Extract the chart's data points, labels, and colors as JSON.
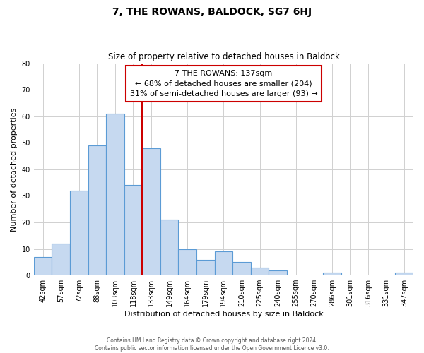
{
  "title": "7, THE ROWANS, BALDOCK, SG7 6HJ",
  "subtitle": "Size of property relative to detached houses in Baldock",
  "xlabel": "Distribution of detached houses by size in Baldock",
  "ylabel": "Number of detached properties",
  "bin_labels": [
    "42sqm",
    "57sqm",
    "72sqm",
    "88sqm",
    "103sqm",
    "118sqm",
    "133sqm",
    "149sqm",
    "164sqm",
    "179sqm",
    "194sqm",
    "210sqm",
    "225sqm",
    "240sqm",
    "255sqm",
    "270sqm",
    "286sqm",
    "301sqm",
    "316sqm",
    "331sqm",
    "347sqm"
  ],
  "bar_heights": [
    7,
    12,
    32,
    49,
    61,
    34,
    48,
    21,
    10,
    6,
    9,
    5,
    3,
    2,
    0,
    0,
    1,
    0,
    0,
    0,
    1
  ],
  "bar_color": "#c6d9f0",
  "bar_edge_color": "#5b9bd5",
  "vline_x_idx": 6,
  "vline_color": "#cc0000",
  "annotation_line1": "7 THE ROWANS: 137sqm",
  "annotation_line2": "← 68% of detached houses are smaller (204)",
  "annotation_line3": "31% of semi-detached houses are larger (93) →",
  "annotation_box_edge": "#cc0000",
  "ylim": [
    0,
    80
  ],
  "yticks": [
    0,
    10,
    20,
    30,
    40,
    50,
    60,
    70,
    80
  ],
  "footnote": "Contains HM Land Registry data © Crown copyright and database right 2024.\nContains public sector information licensed under the Open Government Licence v3.0.",
  "bg_color": "#ffffff",
  "grid_color": "#d0d0d0",
  "title_fontsize": 10,
  "subtitle_fontsize": 8.5,
  "tick_fontsize": 7,
  "ylabel_fontsize": 8,
  "xlabel_fontsize": 8
}
